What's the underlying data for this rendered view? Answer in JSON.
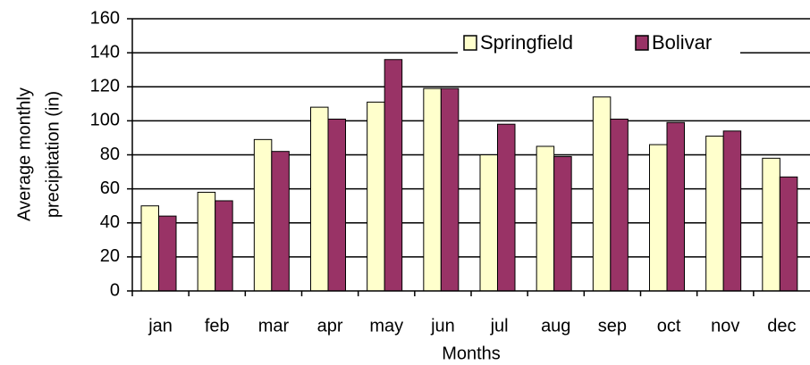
{
  "chart_data": {
    "type": "bar",
    "ylabel": [
      "Average monthly",
      "precipitation (in)"
    ],
    "xlabel": "Months",
    "categories": [
      "jan",
      "feb",
      "mar",
      "apr",
      "may",
      "jun",
      "jul",
      "aug",
      "sep",
      "oct",
      "nov",
      "dec"
    ],
    "series": [
      {
        "name": "Springfield",
        "color": "#ffffcc",
        "values": [
          50,
          58,
          89,
          108,
          111,
          119,
          80,
          85,
          114,
          86,
          91,
          78
        ]
      },
      {
        "name": "Bolivar",
        "color": "#993366",
        "values": [
          44,
          53,
          82,
          101,
          136,
          119,
          98,
          79,
          101,
          99,
          94,
          67
        ]
      }
    ],
    "ylim": [
      0,
      160
    ],
    "yticks": [
      0,
      20,
      40,
      60,
      80,
      100,
      120,
      140,
      160
    ],
    "grid": true,
    "legend": "top-right"
  }
}
